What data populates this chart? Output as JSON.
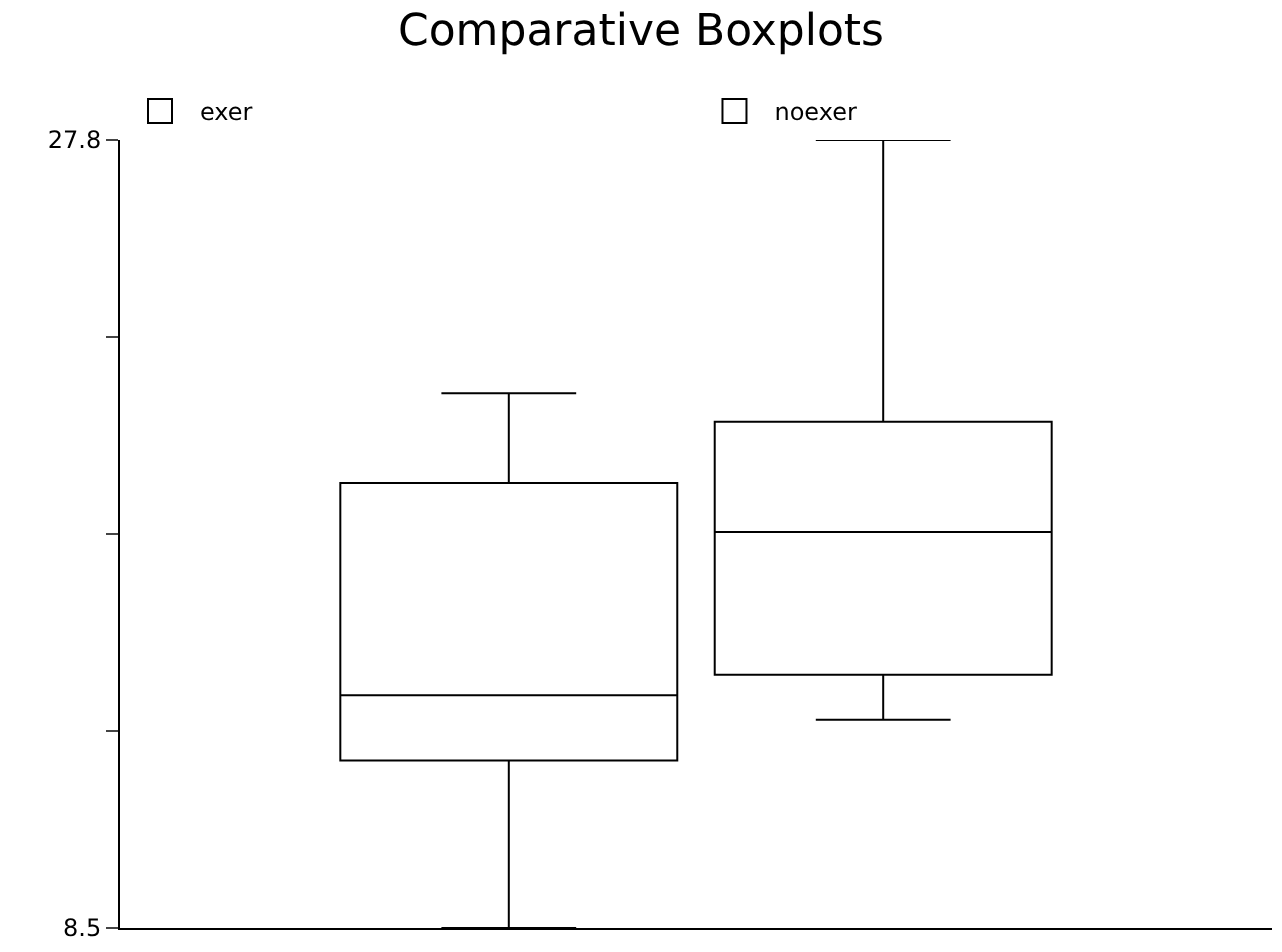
{
  "chart_data": {
    "type": "box",
    "title": "Comparative Boxplots",
    "categories": [
      null
    ],
    "series": [
      {
        "name": "exer",
        "color": "#000000",
        "boxes": [
          {
            "low": 8.5,
            "q1": 12.6,
            "median": 14.2,
            "q3": 19.4,
            "high": 21.6
          }
        ]
      },
      {
        "name": "noexer",
        "color": "#000000",
        "boxes": [
          {
            "low": 13.6,
            "q1": 14.7,
            "median": 18.2,
            "q3": 20.9,
            "high": 27.8
          }
        ]
      }
    ],
    "ylim": [
      8.5,
      27.8
    ],
    "yticks": [
      8.5,
      {
        "value": 13.325,
        "label": null
      },
      {
        "value": 18.15,
        "label": null
      },
      {
        "value": 22.975,
        "label": null
      },
      27.8
    ],
    "legend": "top left"
  }
}
